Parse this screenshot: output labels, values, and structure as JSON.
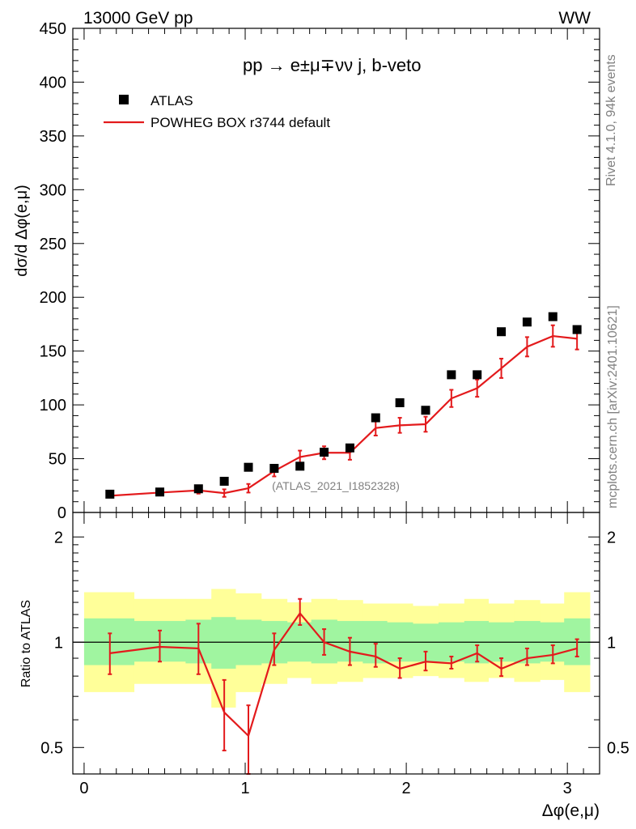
{
  "header": {
    "left": "13000 GeV pp",
    "right": "WW"
  },
  "side_labels": {
    "rivet": "Rivet 4.1.0,  94k events",
    "mcplots": "mcplots.cern.ch [arXiv:2401.10621]"
  },
  "colors": {
    "mc_line": "#e31a1c",
    "band_inner": "#a0f5a0",
    "band_outer": "#ffff99",
    "data_marker": "#000000",
    "watermark": "#808080"
  },
  "chart_data": [
    {
      "type": "line",
      "title": "pp  →  e±μ∓νν j, b-veto",
      "ylabel": "dσ/d Δφ(e,μ)",
      "xlabel": "Δφ(e,μ)",
      "xlim": [
        -0.07,
        3.2
      ],
      "ylim": [
        0,
        450
      ],
      "yticks": [
        0,
        50,
        100,
        150,
        200,
        250,
        300,
        350,
        400,
        450
      ],
      "ytick_labels": [
        "0",
        "50",
        "100",
        "150",
        "200",
        "250",
        "300",
        "350",
        "400",
        "450"
      ],
      "watermark": "(ATLAS_2021_I1852328)",
      "legend": {
        "position": "top-left",
        "data_label": "ATLAS",
        "mc_label": "POWHEG BOX r3744 default"
      },
      "data": {
        "name": "ATLAS",
        "x": [
          0.16,
          0.47,
          0.71,
          0.87,
          1.02,
          1.18,
          1.34,
          1.49,
          1.65,
          1.81,
          1.96,
          2.12,
          2.28,
          2.44,
          2.59,
          2.75,
          2.91,
          3.06
        ],
        "y": [
          17,
          19,
          22,
          29,
          42,
          41,
          43,
          56,
          60,
          88,
          102,
          95,
          128,
          128,
          168,
          177,
          182,
          170
        ]
      },
      "mc": {
        "name": "POWHEG BOX r3744 default",
        "x": [
          0.16,
          0.47,
          0.71,
          0.87,
          1.02,
          1.18,
          1.34,
          1.49,
          1.65,
          1.81,
          1.96,
          2.12,
          2.28,
          2.44,
          2.59,
          2.75,
          2.91,
          3.06
        ],
        "y": [
          15.5,
          18.5,
          20.5,
          18.0,
          22.5,
          38.5,
          51.5,
          55.5,
          55.5,
          78.5,
          81.0,
          82.0,
          106.0,
          115.5,
          134.0,
          154.0,
          164.0,
          161.5
        ],
        "err": [
          1.5,
          1.8,
          3.0,
          3.5,
          4.0,
          5.0,
          6.0,
          6.0,
          6.5,
          7.0,
          7.0,
          7.0,
          8.0,
          8.0,
          9.0,
          9.0,
          10.0,
          10.0
        ]
      }
    },
    {
      "type": "line",
      "ylabel": "Ratio to ATLAS",
      "xlabel": "Δφ(e,μ)",
      "yscale": "log",
      "ylim": [
        0.42,
        2.35
      ],
      "xlim": [
        -0.07,
        3.2
      ],
      "yticks": [
        0.5,
        1,
        2
      ],
      "ytick_labels": [
        "0.5",
        "1",
        "2"
      ],
      "xticks": [
        0,
        1,
        2,
        3
      ],
      "xtick_labels": [
        "0",
        "1",
        "2",
        "3"
      ],
      "bins": [
        0.0,
        0.31,
        0.63,
        0.79,
        0.94,
        1.1,
        1.26,
        1.41,
        1.57,
        1.73,
        1.88,
        2.04,
        2.2,
        2.36,
        2.51,
        2.67,
        2.83,
        2.98,
        3.14
      ],
      "band_inner": {
        "lo": [
          0.86,
          0.88,
          0.87,
          0.84,
          0.86,
          0.87,
          0.88,
          0.87,
          0.88,
          0.87,
          0.88,
          0.88,
          0.88,
          0.87,
          0.88,
          0.87,
          0.88,
          0.86
        ],
        "hi": [
          1.17,
          1.15,
          1.16,
          1.18,
          1.16,
          1.15,
          1.14,
          1.16,
          1.15,
          1.15,
          1.14,
          1.13,
          1.14,
          1.15,
          1.14,
          1.15,
          1.14,
          1.17
        ]
      },
      "band_outer": {
        "lo": [
          0.72,
          0.76,
          0.76,
          0.65,
          0.72,
          0.76,
          0.79,
          0.76,
          0.77,
          0.79,
          0.79,
          0.8,
          0.79,
          0.77,
          0.79,
          0.77,
          0.78,
          0.72
        ],
        "hi": [
          1.39,
          1.33,
          1.33,
          1.42,
          1.38,
          1.33,
          1.3,
          1.33,
          1.32,
          1.29,
          1.29,
          1.27,
          1.29,
          1.33,
          1.29,
          1.32,
          1.29,
          1.39
        ]
      },
      "ratio": {
        "x": [
          0.16,
          0.47,
          0.71,
          0.87,
          1.02,
          1.18,
          1.34,
          1.49,
          1.65,
          1.81,
          1.96,
          2.12,
          2.28,
          2.44,
          2.59,
          2.75,
          2.91,
          3.06
        ],
        "y": [
          0.93,
          0.97,
          0.96,
          0.63,
          0.54,
          0.95,
          1.21,
          1.0,
          0.94,
          0.91,
          0.84,
          0.88,
          0.87,
          0.93,
          0.84,
          0.9,
          0.92,
          0.96
        ],
        "lo": [
          0.81,
          0.88,
          0.81,
          0.49,
          0.42,
          0.86,
          1.12,
          0.92,
          0.86,
          0.85,
          0.79,
          0.83,
          0.84,
          0.88,
          0.8,
          0.86,
          0.87,
          0.91
        ],
        "hi": [
          1.06,
          1.08,
          1.13,
          0.78,
          0.66,
          1.06,
          1.33,
          1.09,
          1.03,
          0.99,
          0.9,
          0.94,
          0.91,
          0.98,
          0.9,
          0.96,
          0.98,
          1.02
        ]
      }
    }
  ]
}
